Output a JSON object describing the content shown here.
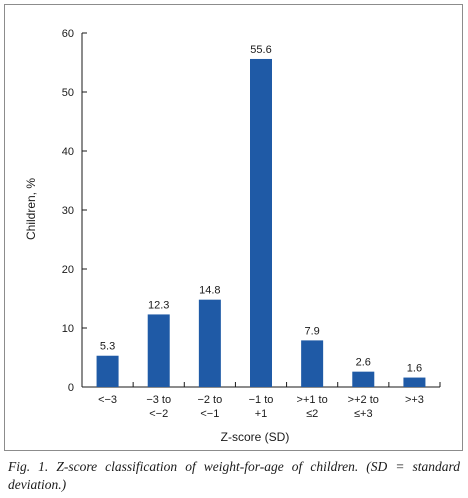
{
  "chart_data": {
    "type": "bar",
    "categories": [
      [
        "<−3"
      ],
      [
        "−3 to",
        "<−2"
      ],
      [
        "−2 to",
        "<−1"
      ],
      [
        "−1 to",
        "+1"
      ],
      [
        ">+1 to",
        "≤2"
      ],
      [
        ">+2 to",
        "≤+3"
      ],
      [
        ">+3"
      ]
    ],
    "values": [
      5.3,
      12.3,
      14.8,
      55.6,
      7.9,
      2.6,
      1.6
    ],
    "data_labels": [
      "5.3",
      "12.3",
      "14.8",
      "55.6",
      "7.9",
      "2.6",
      "1.6"
    ],
    "xlabel": "Z-score (SD)",
    "ylabel": "Children, %",
    "ylim": [
      0,
      60
    ],
    "yticks": [
      0,
      10,
      20,
      30,
      40,
      50,
      60
    ],
    "grid": false,
    "bar_color": "#1f5aa6"
  },
  "caption": "Fig. 1. Z-score classification of weight-for-age of children. (SD = standard deviation.)"
}
